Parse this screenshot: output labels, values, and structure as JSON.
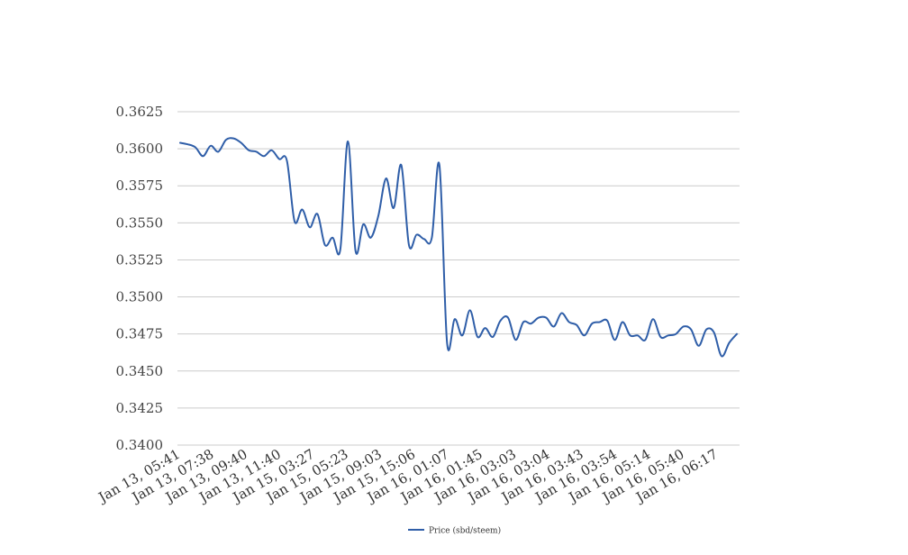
{
  "chart_data": {
    "type": "line",
    "title": "",
    "xlabel": "",
    "ylabel": "",
    "ylim": [
      0.34,
      0.3625
    ],
    "yticks": [
      "0.3625",
      "0.3600",
      "0.3575",
      "0.3550",
      "0.3525",
      "0.3500",
      "0.3475",
      "0.3450",
      "0.3425",
      "0.3400"
    ],
    "x_tick_labels": [
      "Jan 13, 05:41",
      "Jan 13, 07:38",
      "Jan 13, 09:40",
      "Jan 13, 11:40",
      "Jan 15, 03:27",
      "Jan 15, 05:23",
      "Jan 15, 09:03",
      "Jan 15, 15:06",
      "Jan 16, 01:07",
      "Jan 16, 01:45",
      "Jan 16, 03:03",
      "Jan 16, 03:04",
      "Jan 16, 03:43",
      "Jan 16, 03:54",
      "Jan 16, 05:14",
      "Jan 16, 05:40",
      "Jan 16, 06:17"
    ],
    "grid": true,
    "legend_position": "bottom",
    "series": [
      {
        "name": "Price (sbd/steem)",
        "color": "#2f5ea8",
        "values": [
          0.3604,
          0.3603,
          0.3601,
          0.3595,
          0.3602,
          0.3598,
          0.3606,
          0.3607,
          0.3604,
          0.3599,
          0.3598,
          0.3595,
          0.3599,
          0.3593,
          0.3592,
          0.3551,
          0.3559,
          0.3547,
          0.3556,
          0.3535,
          0.354,
          0.3532,
          0.3605,
          0.3531,
          0.3549,
          0.354,
          0.3555,
          0.358,
          0.356,
          0.3589,
          0.3535,
          0.3542,
          0.3539,
          0.354,
          0.3589,
          0.3469,
          0.3485,
          0.3474,
          0.3491,
          0.3473,
          0.3479,
          0.3473,
          0.3484,
          0.3486,
          0.3471,
          0.3483,
          0.3482,
          0.3486,
          0.3486,
          0.348,
          0.3489,
          0.3483,
          0.3481,
          0.3474,
          0.3482,
          0.3483,
          0.3484,
          0.3471,
          0.3483,
          0.3474,
          0.3474,
          0.3471,
          0.3485,
          0.3473,
          0.3474,
          0.3475,
          0.348,
          0.3478,
          0.3467,
          0.3478,
          0.3476,
          0.346,
          0.3469,
          0.3475
        ]
      }
    ]
  }
}
